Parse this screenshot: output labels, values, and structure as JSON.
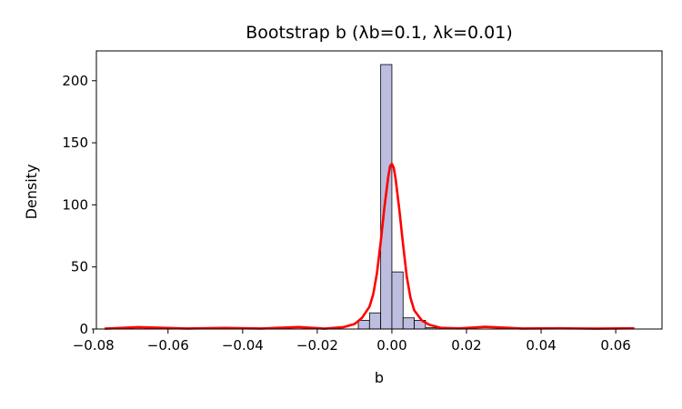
{
  "chart_data": {
    "type": "histogram",
    "title": "Bootstrap b (λb=0.1, λk=0.01)",
    "xlabel": "b",
    "ylabel": "Density",
    "xlim": [
      -0.0792,
      0.0724
    ],
    "ylim": [
      0,
      224
    ],
    "xticks": [
      -0.08,
      -0.06,
      -0.04,
      -0.02,
      0.0,
      0.02,
      0.04,
      0.06
    ],
    "xtick_labels": [
      "−0.08",
      "−0.06",
      "−0.04",
      "−0.02",
      "0.00",
      "0.02",
      "0.04",
      "0.06"
    ],
    "yticks": [
      0,
      50,
      100,
      150,
      200
    ],
    "ytick_labels": [
      "0",
      "50",
      "100",
      "150",
      "200"
    ],
    "bin_width": 0.003,
    "bars": [
      {
        "x0": -0.009,
        "height": 7
      },
      {
        "x0": -0.006,
        "height": 13
      },
      {
        "x0": -0.003,
        "height": 213
      },
      {
        "x0": 0.0,
        "height": 46
      },
      {
        "x0": 0.003,
        "height": 9
      },
      {
        "x0": 0.006,
        "height": 7
      },
      {
        "x0": 0.009,
        "height": 1
      }
    ],
    "kde_line": {
      "color": "#ff0000",
      "x": [
        -0.077,
        -0.068,
        -0.055,
        -0.045,
        -0.035,
        -0.025,
        -0.018,
        -0.013,
        -0.01,
        -0.008,
        -0.006,
        -0.005,
        -0.004,
        -0.003,
        -0.002,
        -0.001,
        -0.0005,
        0.0,
        0.0005,
        0.001,
        0.002,
        0.003,
        0.004,
        0.005,
        0.006,
        0.008,
        0.01,
        0.013,
        0.018,
        0.025,
        0.035,
        0.045,
        0.055,
        0.065
      ],
      "y": [
        0.3,
        1.5,
        0.4,
        0.9,
        0.4,
        1.6,
        0.3,
        1.5,
        4.0,
        9.0,
        18.0,
        28.0,
        45.0,
        70.0,
        98.0,
        122.0,
        131.0,
        133.0,
        130.0,
        121.0,
        96.0,
        68.0,
        42.0,
        25.0,
        15.0,
        7.0,
        3.5,
        1.0,
        0.5,
        1.8,
        0.4,
        0.6,
        0.3,
        0.6
      ]
    },
    "bar_fill": "#bcbddf",
    "bar_edge": "#000000"
  }
}
